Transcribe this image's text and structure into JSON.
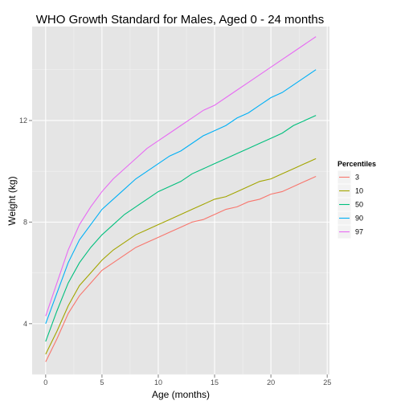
{
  "chart_data": {
    "type": "line",
    "title": "WHO Growth Standard for Males, Aged 0 - 24 months",
    "xlabel": "Age (months)",
    "ylabel": "Weight (kg)",
    "xlim": [
      -1.2,
      25.2
    ],
    "ylim": [
      2.0,
      15.7
    ],
    "x_ticks": [
      0,
      5,
      10,
      15,
      20,
      25
    ],
    "x_minor_ticks": [
      2.5,
      7.5,
      12.5,
      17.5,
      22.5
    ],
    "y_ticks": [
      4,
      8,
      12
    ],
    "y_minor_ticks": [
      2,
      6,
      10,
      14
    ],
    "grid": true,
    "legend": {
      "title": "Percentiles",
      "placement": "right"
    },
    "x": [
      0,
      1,
      2,
      3,
      4,
      5,
      6,
      7,
      8,
      9,
      10,
      11,
      12,
      13,
      14,
      15,
      16,
      17,
      18,
      19,
      20,
      21,
      22,
      23,
      24
    ],
    "series": [
      {
        "name": "3",
        "color": "#F8766D",
        "values": [
          2.5,
          3.4,
          4.4,
          5.1,
          5.6,
          6.1,
          6.4,
          6.7,
          7.0,
          7.2,
          7.4,
          7.6,
          7.8,
          8.0,
          8.1,
          8.3,
          8.5,
          8.6,
          8.8,
          8.9,
          9.1,
          9.2,
          9.4,
          9.6,
          9.8
        ]
      },
      {
        "name": "10",
        "color": "#A3A500",
        "values": [
          2.8,
          3.7,
          4.7,
          5.5,
          6.0,
          6.5,
          6.9,
          7.2,
          7.5,
          7.7,
          7.9,
          8.1,
          8.3,
          8.5,
          8.7,
          8.9,
          9.0,
          9.2,
          9.4,
          9.6,
          9.7,
          9.9,
          10.1,
          10.3,
          10.5
        ]
      },
      {
        "name": "50",
        "color": "#00BF7D",
        "values": [
          3.3,
          4.5,
          5.6,
          6.4,
          7.0,
          7.5,
          7.9,
          8.3,
          8.6,
          8.9,
          9.2,
          9.4,
          9.6,
          9.9,
          10.1,
          10.3,
          10.5,
          10.7,
          10.9,
          11.1,
          11.3,
          11.5,
          11.8,
          12.0,
          12.2
        ]
      },
      {
        "name": "90",
        "color": "#00B0F6",
        "values": [
          4.0,
          5.2,
          6.4,
          7.3,
          7.9,
          8.5,
          8.9,
          9.3,
          9.7,
          10.0,
          10.3,
          10.6,
          10.8,
          11.1,
          11.4,
          11.6,
          11.8,
          12.1,
          12.3,
          12.6,
          12.9,
          13.1,
          13.4,
          13.7,
          14.0
        ]
      },
      {
        "name": "97",
        "color": "#E76BF3",
        "values": [
          4.3,
          5.6,
          6.9,
          7.9,
          8.6,
          9.2,
          9.7,
          10.1,
          10.5,
          10.9,
          11.2,
          11.5,
          11.8,
          12.1,
          12.4,
          12.6,
          12.9,
          13.2,
          13.5,
          13.8,
          14.1,
          14.4,
          14.7,
          15.0,
          15.3
        ]
      }
    ]
  }
}
